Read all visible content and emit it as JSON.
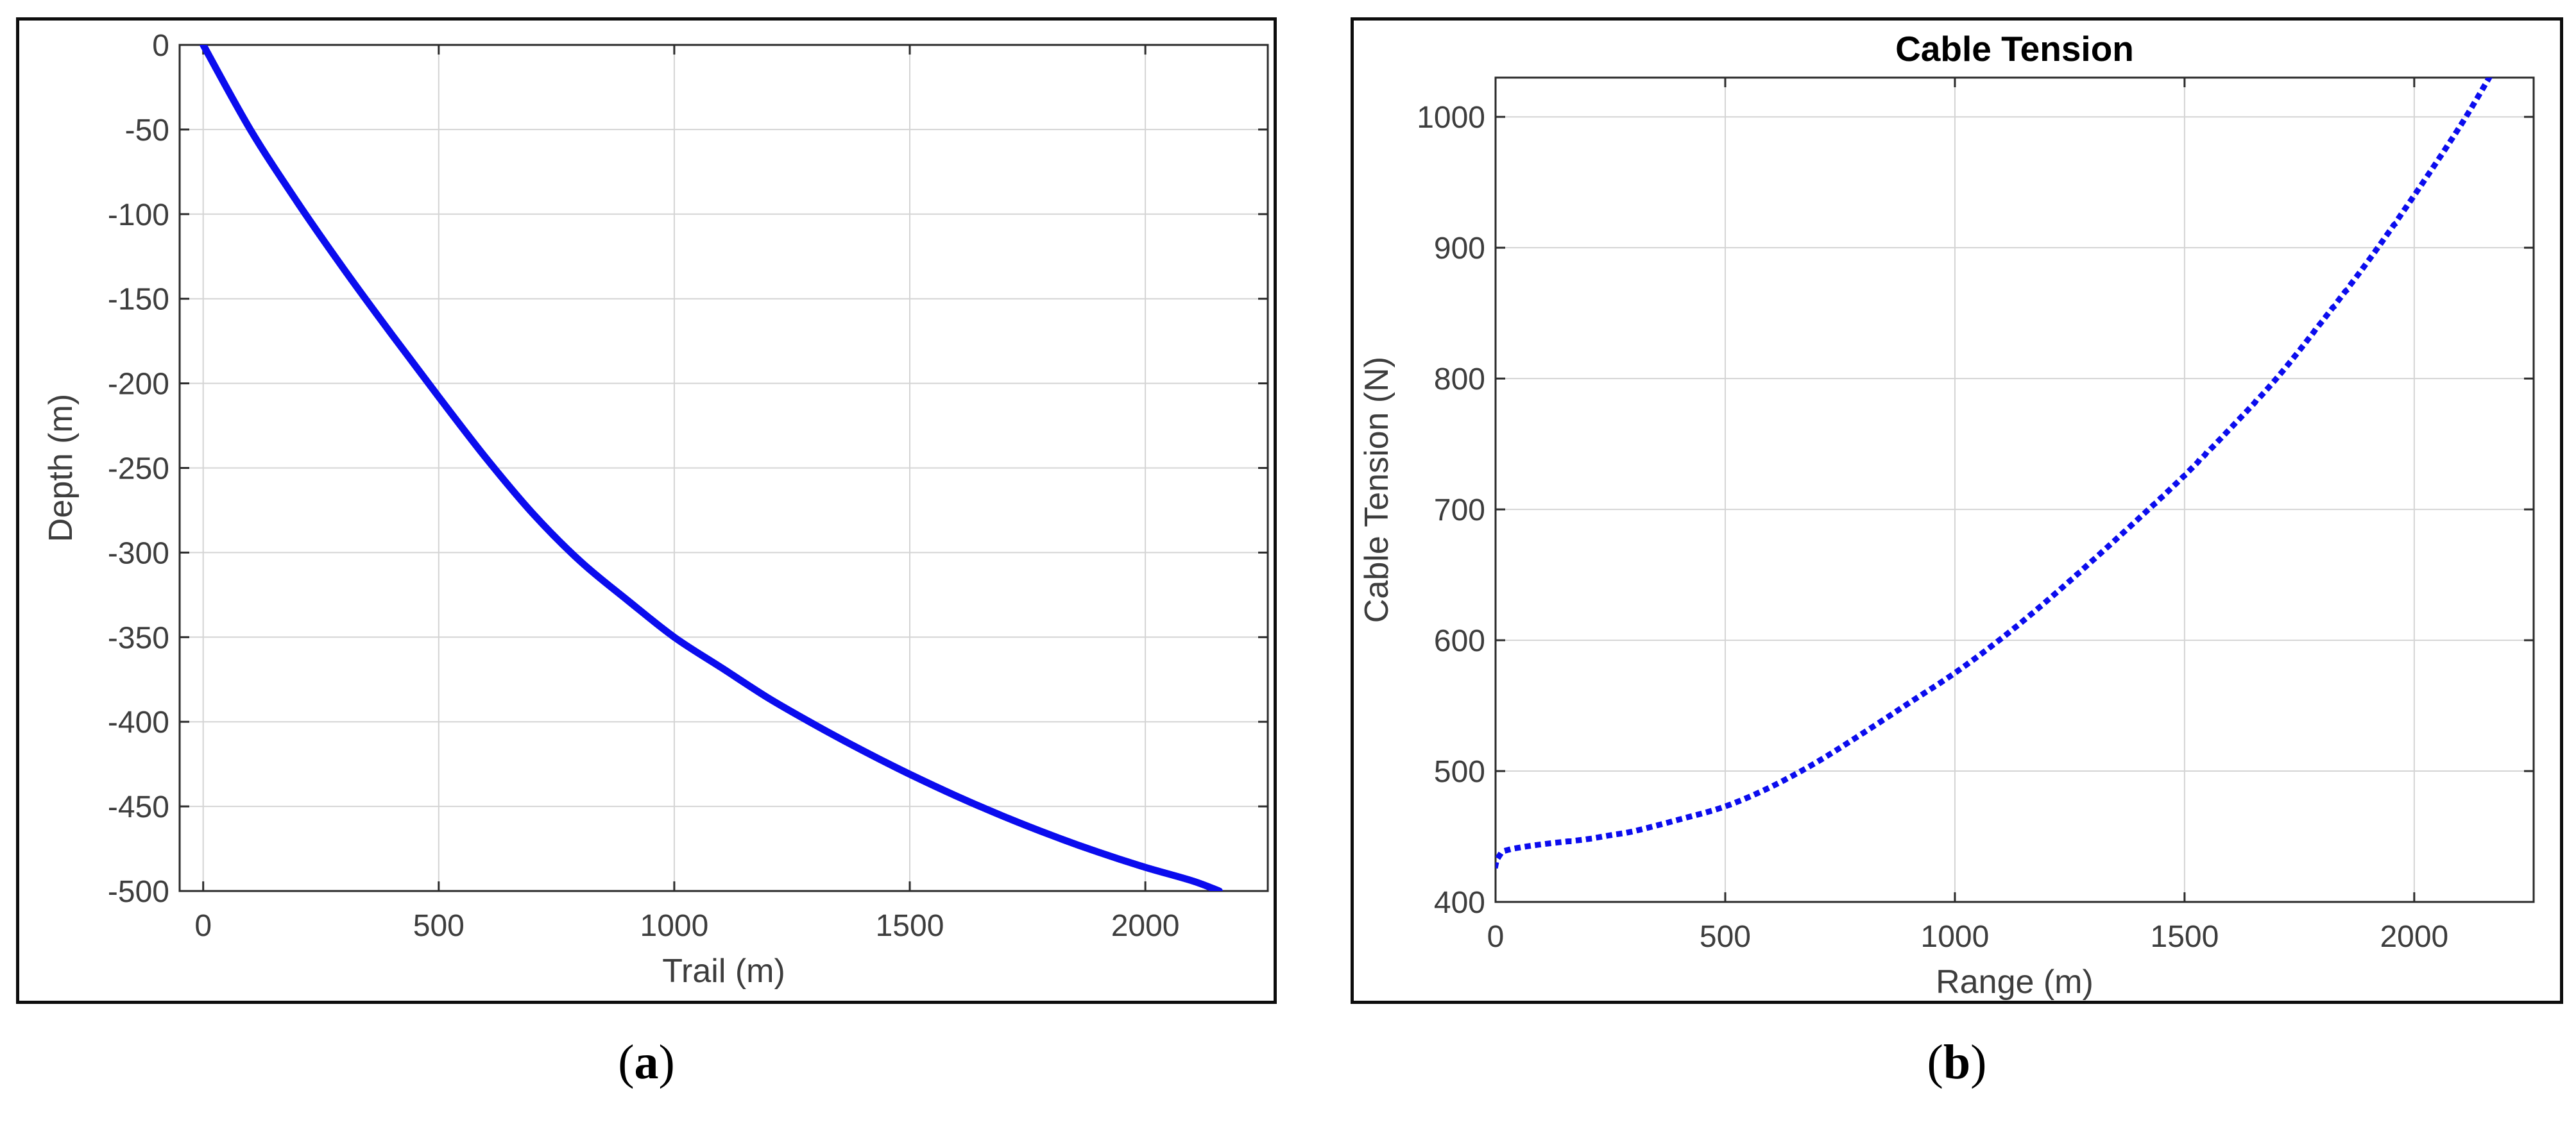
{
  "figure": {
    "captions": [
      {
        "open": "(",
        "letter": "a",
        "close": ")"
      },
      {
        "open": "(",
        "letter": "b",
        "close": ")"
      }
    ],
    "colors": {
      "curve_blue": "#0b0cee",
      "grid_gray": "#d4d4d4",
      "axis_dark": "#2b2b2b",
      "tick_label_gray": "#3d3d3d",
      "panel_border_black": "#0d0d0d",
      "background_white": "#ffffff",
      "title_black": "#000000"
    }
  },
  "chart_data": [
    {
      "id": "trajectory",
      "type": "line",
      "title": "",
      "xlabel": "Trail (m)",
      "ylabel": "Depth (m)",
      "xlim": [
        -50,
        2260
      ],
      "ylim": [
        -500,
        0
      ],
      "xticks": [
        0,
        500,
        1000,
        1500,
        2000
      ],
      "yticks": [
        0,
        -50,
        -100,
        -150,
        -200,
        -250,
        -300,
        -350,
        -400,
        -450,
        -500
      ],
      "grid": true,
      "legend": "none",
      "line_style": "solid",
      "points": [
        [
          0,
          0
        ],
        [
          100,
          -50
        ],
        [
          200,
          -93
        ],
        [
          300,
          -133
        ],
        [
          400,
          -171
        ],
        [
          500,
          -208
        ],
        [
          600,
          -244
        ],
        [
          700,
          -277
        ],
        [
          800,
          -305
        ],
        [
          900,
          -328
        ],
        [
          1000,
          -350
        ],
        [
          1100,
          -368
        ],
        [
          1200,
          -386
        ],
        [
          1300,
          -402
        ],
        [
          1400,
          -417
        ],
        [
          1500,
          -431
        ],
        [
          1600,
          -444
        ],
        [
          1700,
          -456
        ],
        [
          1800,
          -467
        ],
        [
          1900,
          -477
        ],
        [
          2000,
          -486
        ],
        [
          2100,
          -494
        ],
        [
          2157,
          -500
        ]
      ]
    },
    {
      "id": "cable-tension",
      "type": "line",
      "title": "Cable Tension",
      "xlabel": "Range (m)",
      "ylabel": "Cable Tension (N)",
      "xlim": [
        0,
        2260
      ],
      "ylim": [
        400,
        1030
      ],
      "xticks": [
        0,
        500,
        1000,
        1500,
        2000
      ],
      "yticks": [
        400,
        500,
        600,
        700,
        800,
        900,
        1000
      ],
      "grid": true,
      "legend": "none",
      "line_style": "dotted",
      "points": [
        [
          0,
          428
        ],
        [
          2,
          431
        ],
        [
          6,
          434
        ],
        [
          15,
          438
        ],
        [
          30,
          440
        ],
        [
          60,
          442
        ],
        [
          100,
          444
        ],
        [
          150,
          446
        ],
        [
          200,
          448
        ],
        [
          250,
          451
        ],
        [
          300,
          454
        ],
        [
          400,
          463
        ],
        [
          500,
          473
        ],
        [
          600,
          488
        ],
        [
          700,
          507
        ],
        [
          800,
          529
        ],
        [
          900,
          552
        ],
        [
          1000,
          575
        ],
        [
          1100,
          601
        ],
        [
          1200,
          630
        ],
        [
          1300,
          661
        ],
        [
          1400,
          693
        ],
        [
          1500,
          726
        ],
        [
          1600,
          762
        ],
        [
          1700,
          800
        ],
        [
          1800,
          844
        ],
        [
          1900,
          890
        ],
        [
          2000,
          940
        ],
        [
          2100,
          993
        ],
        [
          2165,
          1031
        ]
      ]
    }
  ]
}
